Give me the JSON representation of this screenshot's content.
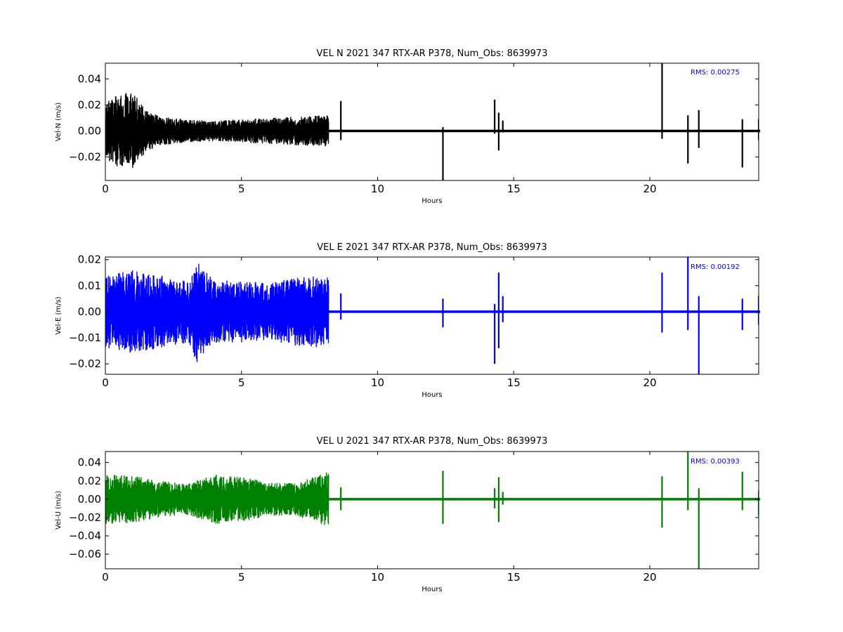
{
  "chart_data": [
    {
      "type": "line",
      "title": "VEL N 2021 347 RTX-AR  P378, Num_Obs: 8639973",
      "xlabel": "Hours",
      "ylabel": "Vel-N (m/s)",
      "xlim": [
        0,
        24
      ],
      "ylim": [
        -0.038,
        0.052
      ],
      "x_ticks": [
        0,
        5,
        10,
        15,
        20
      ],
      "y_ticks": [
        -0.02,
        0.0,
        0.02,
        0.04
      ],
      "color": "#000000",
      "rms_label": "RMS:  0.00275",
      "grid": false,
      "noisy_segment": {
        "x_range": [
          0.0,
          8.2
        ],
        "envelope_x": [
          0,
          0.5,
          1.0,
          1.5,
          2.0,
          3.0,
          4.0,
          5.0,
          6.0,
          7.0,
          8.2
        ],
        "envelope_amp": [
          0.022,
          0.028,
          0.03,
          0.016,
          0.011,
          0.009,
          0.008,
          0.009,
          0.01,
          0.011,
          0.012
        ]
      },
      "series": [
        {
          "x": [
            0,
            8.2,
            8.65,
            8.65,
            8.65,
            12.4,
            12.4,
            12.4,
            14.3,
            14.3,
            14.45,
            14.45,
            14.6,
            20.45,
            20.45,
            20.5,
            21.4,
            21.4,
            21.8,
            21.8,
            23.4,
            23.4,
            24.0,
            24.0
          ],
          "y": [
            0.0,
            0.0,
            0.023,
            -0.007,
            0.0,
            0.003,
            -0.04,
            0.0,
            0.024,
            -0.002,
            0.014,
            -0.015,
            0.008,
            0.052,
            -0.006,
            0.0,
            0.012,
            -0.025,
            0.016,
            -0.013,
            0.009,
            -0.028,
            0.009,
            -0.007
          ]
        }
      ]
    },
    {
      "type": "line",
      "title": "VEL E 2021 347 RTX-AR  P378, Num_Obs: 8639973",
      "xlabel": "Hours",
      "ylabel": "Vel-E (m/s)",
      "xlim": [
        0,
        24
      ],
      "ylim": [
        -0.024,
        0.021
      ],
      "x_ticks": [
        0,
        5,
        10,
        15,
        20
      ],
      "y_ticks": [
        -0.02,
        -0.01,
        0.0,
        0.01,
        0.02
      ],
      "color": "#0000ff",
      "rms_label": "RMS:  0.00192",
      "grid": false,
      "noisy_segment": {
        "x_range": [
          0.0,
          8.2
        ],
        "envelope_x": [
          0,
          1.0,
          2.0,
          3.0,
          3.4,
          4.0,
          5.0,
          6.0,
          7.0,
          8.2
        ],
        "envelope_amp": [
          0.014,
          0.016,
          0.014,
          0.012,
          0.02,
          0.012,
          0.012,
          0.011,
          0.013,
          0.014
        ]
      },
      "series": [
        {
          "x": [
            0,
            8.2,
            8.65,
            8.65,
            12.4,
            12.4,
            14.3,
            14.3,
            14.45,
            14.45,
            14.6,
            14.6,
            20.45,
            20.45,
            21.4,
            21.4,
            21.8,
            21.8,
            23.4,
            23.4,
            24.0,
            24.0
          ],
          "y": [
            0.0,
            0.0,
            0.007,
            -0.003,
            0.005,
            -0.006,
            0.003,
            -0.02,
            0.015,
            -0.014,
            0.006,
            -0.004,
            0.015,
            -0.008,
            0.021,
            -0.007,
            0.006,
            -0.024,
            0.005,
            -0.007,
            0.006,
            -0.005
          ]
        }
      ]
    },
    {
      "type": "line",
      "title": "VEL U 2021 347 RTX-AR  P378, Num_Obs: 8639973",
      "xlabel": "Hours",
      "ylabel": "Vel-U (m/s)",
      "xlim": [
        0,
        24
      ],
      "ylim": [
        -0.076,
        0.052
      ],
      "x_ticks": [
        0,
        5,
        10,
        15,
        20
      ],
      "y_ticks": [
        -0.06,
        -0.04,
        -0.02,
        0.0,
        0.02,
        0.04
      ],
      "color": "#008000",
      "rms_label": "RMS:  0.00393",
      "grid": false,
      "noisy_segment": {
        "x_range": [
          0.0,
          8.2
        ],
        "envelope_x": [
          0,
          1.0,
          2.0,
          3.0,
          4.0,
          5.0,
          6.0,
          7.0,
          8.2
        ],
        "envelope_amp": [
          0.027,
          0.026,
          0.02,
          0.017,
          0.027,
          0.025,
          0.018,
          0.018,
          0.03
        ]
      },
      "series": [
        {
          "x": [
            0,
            8.2,
            8.65,
            8.65,
            12.4,
            12.4,
            14.3,
            14.3,
            14.45,
            14.45,
            14.6,
            14.6,
            20.45,
            20.45,
            21.4,
            21.4,
            21.8,
            21.8,
            23.4,
            23.4,
            24.0,
            24.0
          ],
          "y": [
            0.0,
            0.0,
            0.013,
            -0.012,
            0.031,
            -0.027,
            0.012,
            -0.01,
            0.024,
            -0.025,
            0.008,
            -0.006,
            0.025,
            -0.031,
            0.052,
            -0.012,
            0.012,
            -0.076,
            0.03,
            -0.012,
            0.009,
            -0.018
          ]
        }
      ]
    }
  ]
}
